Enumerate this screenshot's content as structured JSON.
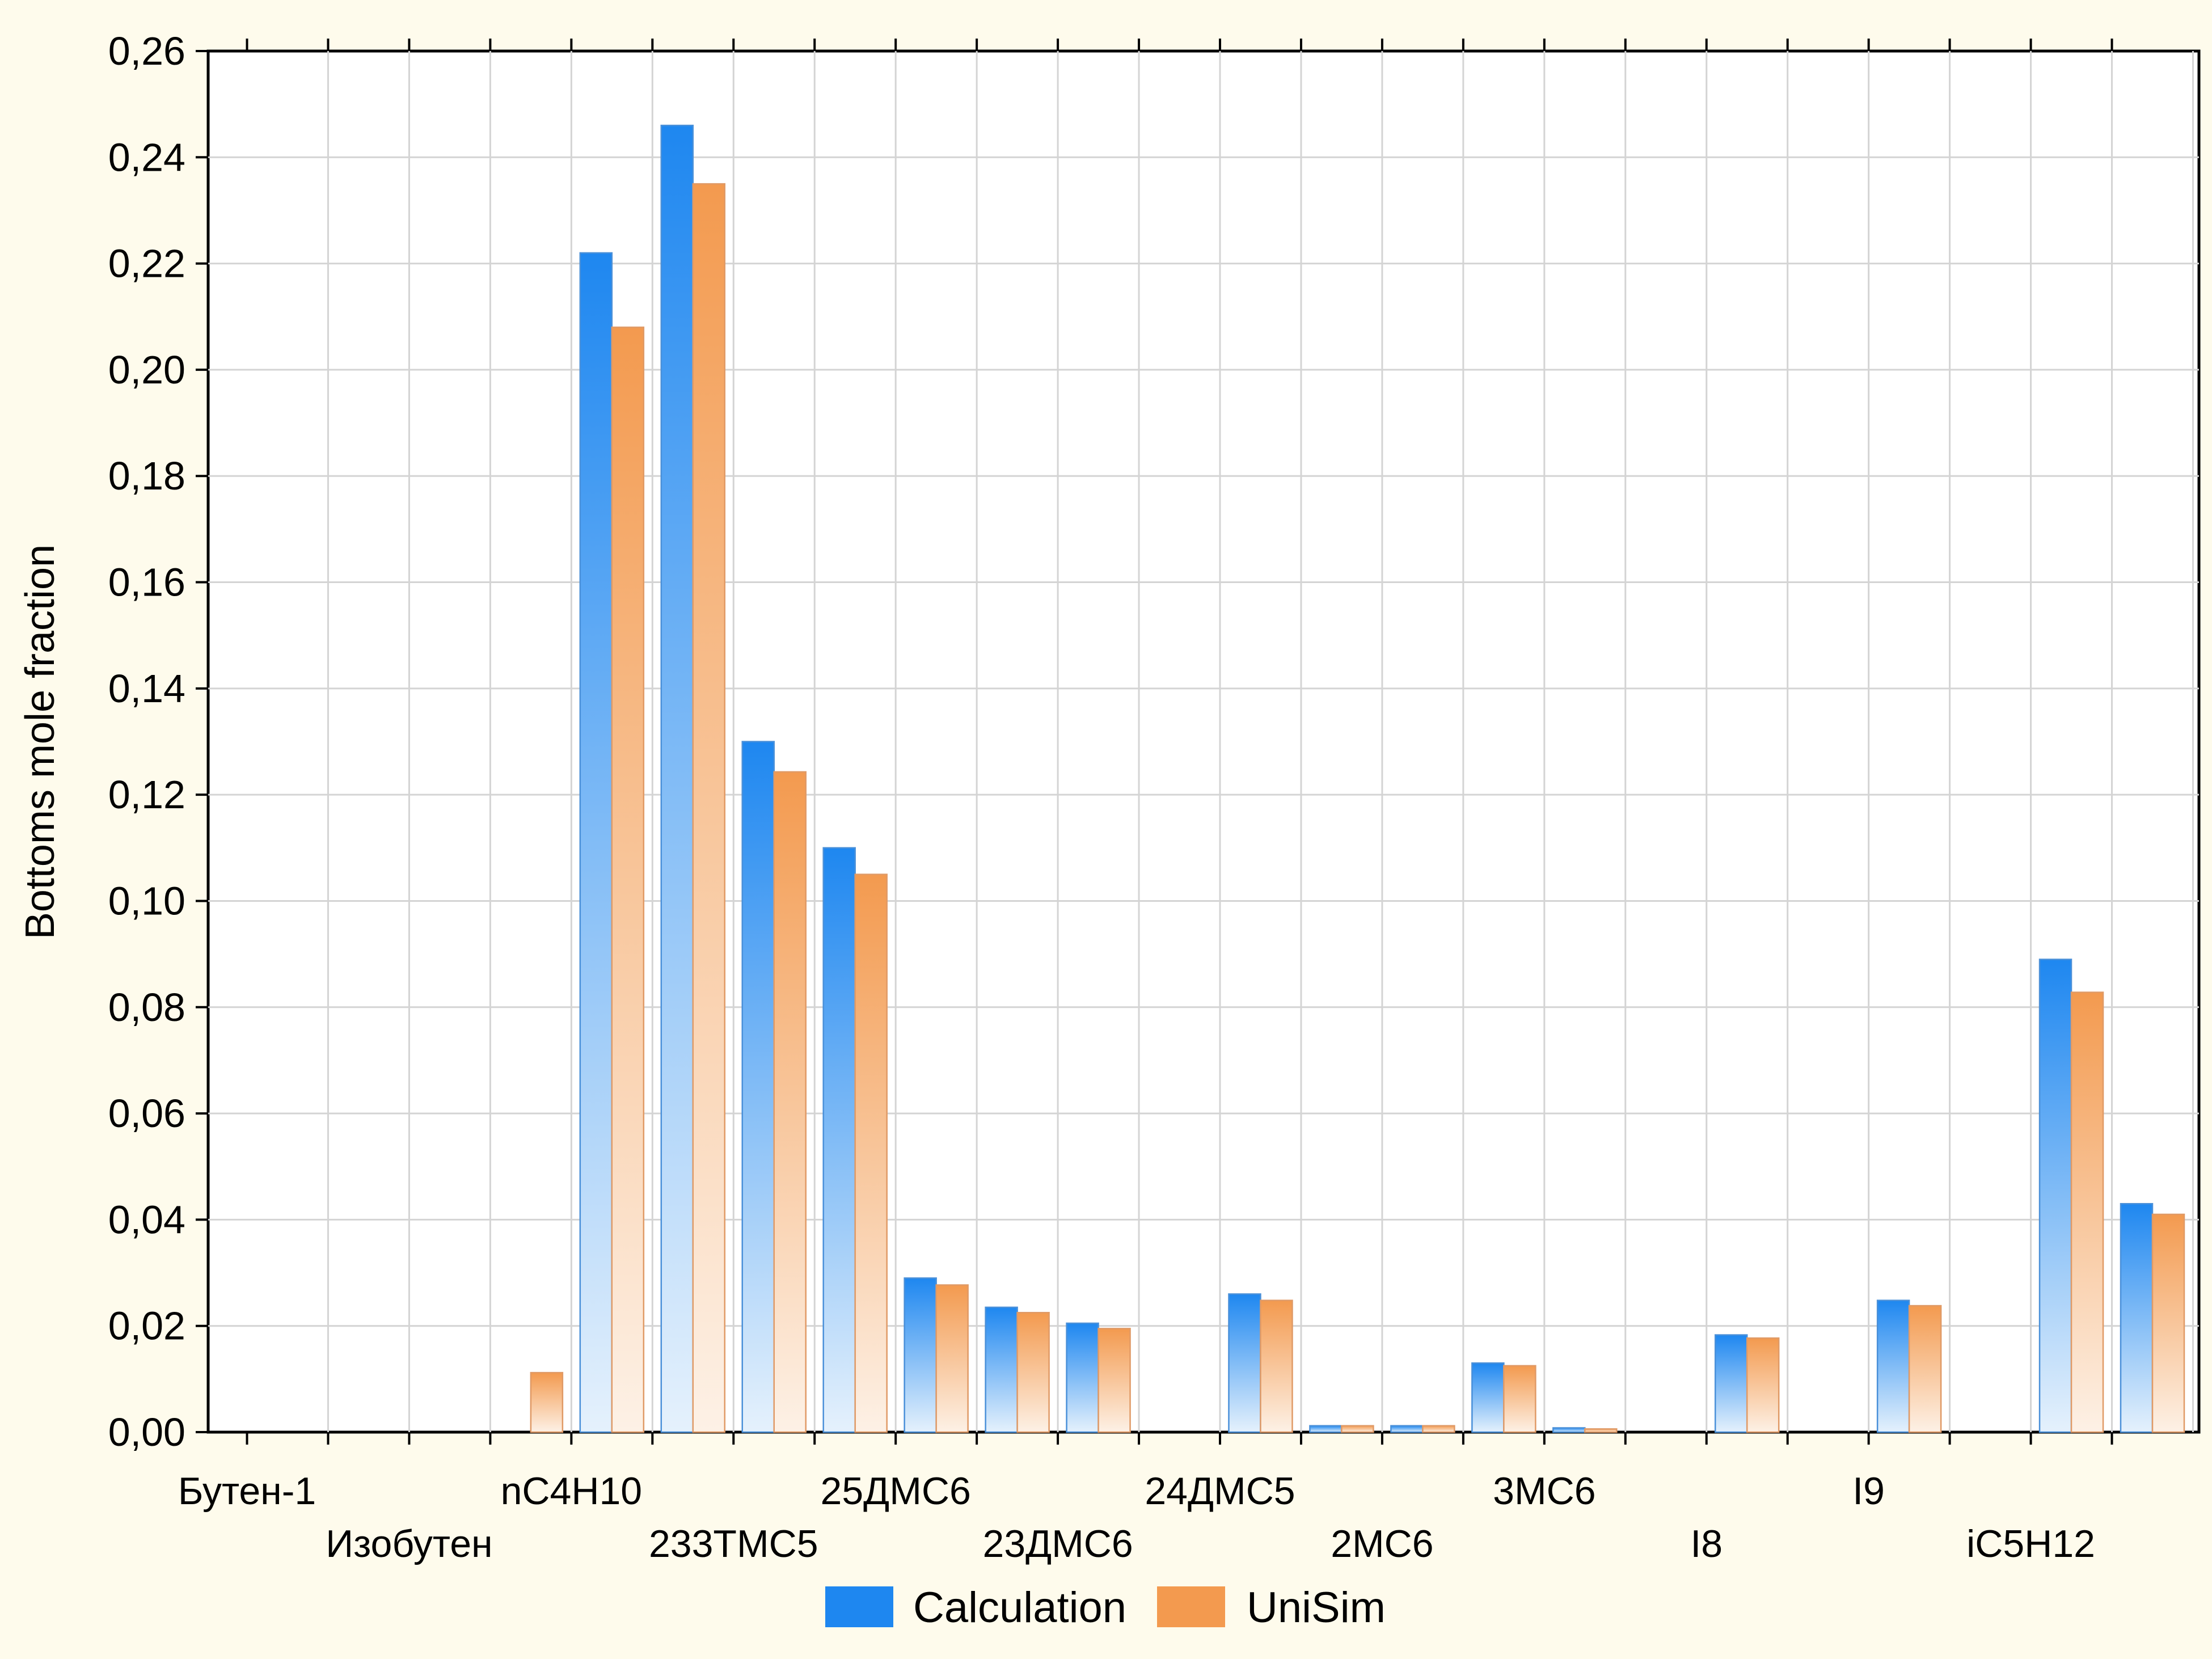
{
  "chart_data": {
    "type": "bar",
    "title": "",
    "xlabel": "",
    "ylabel": "Bottoms mole fraction",
    "ylim": [
      0,
      0.26
    ],
    "yticks": [
      "0,00",
      "0,02",
      "0,04",
      "0,06",
      "0,08",
      "0,10",
      "0,12",
      "0,14",
      "0,16",
      "0,18",
      "0,20",
      "0,22",
      "0,24",
      "0,26"
    ],
    "grid": true,
    "legend": "bottom-center",
    "categories": [
      "Бутен-1",
      "",
      "Изобутен",
      "",
      "nC4H10",
      "",
      "233TMC5",
      "",
      "25ДМС6",
      "",
      "23ДМС6",
      "",
      "24ДМС5",
      "",
      "2МС6",
      "",
      "3МС6",
      "",
      "I8",
      "",
      "I9",
      "",
      "iC5H12",
      ""
    ],
    "series": [
      {
        "name": "Calculation",
        "color": "#1e87f0",
        "values": [
          0,
          0,
          0,
          0,
          0.222,
          0.246,
          0.13,
          0.11,
          0.029,
          0.0235,
          0.0205,
          0,
          0.026,
          0.0012,
          0.0012,
          0.013,
          0.0008,
          0,
          0.0183,
          0,
          0.0248,
          0,
          0.089,
          0.043
        ]
      },
      {
        "name": "UniSim",
        "color": "#f39a4f",
        "values": [
          0,
          0,
          0,
          0.0112,
          0.208,
          0.235,
          0.1243,
          0.105,
          0.0277,
          0.0225,
          0.0195,
          0,
          0.0248,
          0.0012,
          0.0012,
          0.0125,
          0.0006,
          0,
          0.0177,
          0,
          0.0238,
          0,
          0.0828,
          0.041
        ]
      }
    ]
  }
}
